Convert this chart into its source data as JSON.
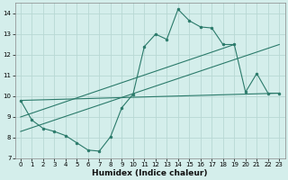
{
  "xlabel": "Humidex (Indice chaleur)",
  "bg_color": "#d4eeeb",
  "grid_color": "#b8d8d4",
  "line_color": "#2a7a6a",
  "xlim": [
    -0.5,
    23.5
  ],
  "ylim": [
    7,
    14.5
  ],
  "xticks": [
    0,
    1,
    2,
    3,
    4,
    5,
    6,
    7,
    8,
    9,
    10,
    11,
    12,
    13,
    14,
    15,
    16,
    17,
    18,
    19,
    20,
    21,
    22,
    23
  ],
  "yticks": [
    7,
    8,
    9,
    10,
    11,
    12,
    13,
    14
  ],
  "series1_x": [
    0,
    1,
    2,
    3,
    4,
    5,
    6,
    7,
    8,
    9,
    10,
    11,
    12,
    13,
    14,
    15,
    16,
    17,
    18,
    19,
    20,
    21,
    22,
    23
  ],
  "series1_y": [
    9.8,
    8.85,
    8.45,
    8.3,
    8.1,
    7.75,
    7.4,
    7.35,
    8.05,
    9.45,
    10.1,
    12.4,
    13.0,
    12.75,
    14.2,
    13.65,
    13.35,
    13.3,
    12.5,
    12.5,
    10.2,
    11.1,
    10.15,
    10.15
  ],
  "series2_x": [
    0,
    19
  ],
  "series2_y": [
    9.0,
    12.5
  ],
  "series3_x": [
    0,
    23
  ],
  "series3_y": [
    8.3,
    12.5
  ],
  "series4_x": [
    0,
    23
  ],
  "series4_y": [
    9.8,
    10.15
  ]
}
